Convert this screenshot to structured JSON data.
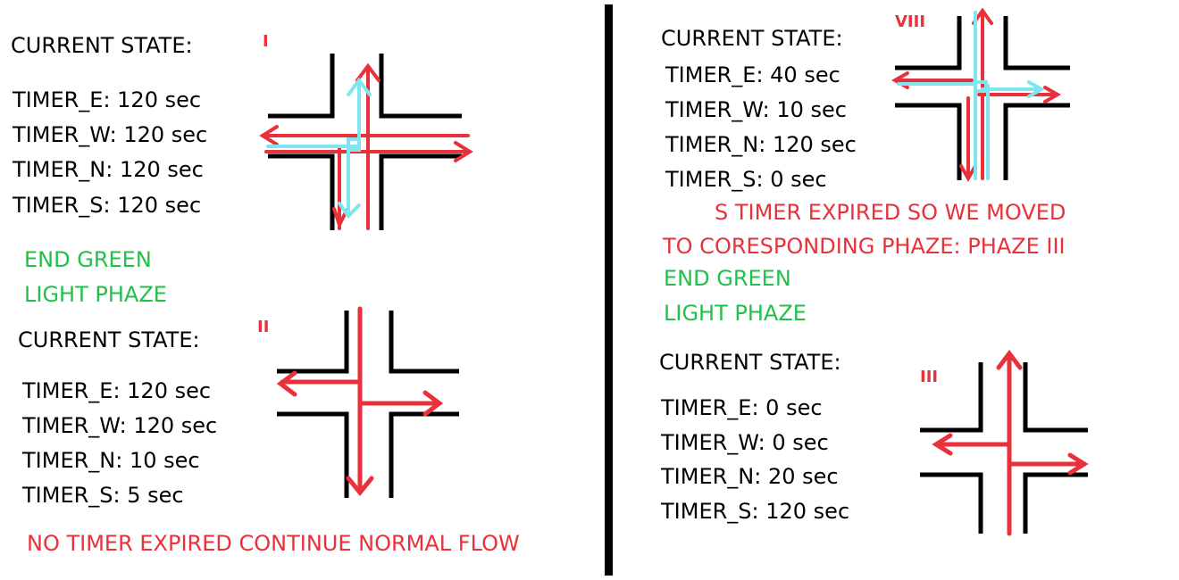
{
  "colors": {
    "text": "#000000",
    "status_green": "#21c04a",
    "status_red": "#e8313a",
    "arrow_red": "#e8313a",
    "arrow_cyan": "#7fe6ef",
    "road": "#000000"
  },
  "phases": [
    {
      "id": "phase-1",
      "heading": "CURRENT STATE:",
      "label": "I",
      "timers": [
        "TIMER_E: 120 sec",
        "TIMER_W: 120 sec",
        "TIMER_N: 120 sec",
        "TIMER_S: 120  sec"
      ],
      "status_lines": [
        "END GREEN",
        "LIGHT PHAZE"
      ]
    },
    {
      "id": "phase-2",
      "heading": "CURRENT STATE:",
      "label": "II",
      "timers": [
        "TIMER_E: 120 sec",
        "TIMER_W: 120 sec",
        "TIMER_N: 10 sec",
        "TIMER_S: 5 sec"
      ],
      "status_lines": [
        "NO TIMER EXPIRED CONTINUE NORMAL FLOW"
      ]
    },
    {
      "id": "phase-8",
      "heading": "CURRENT STATE:",
      "label": "VIII",
      "timers": [
        "TIMER_E: 40 sec",
        "TIMER_W: 10 sec",
        "TIMER_N: 120 sec",
        "TIMER_S: 0 sec"
      ],
      "status_lines": [
        "S TIMER   EXPIRED SO WE MOVED",
        "TO CORESPONDING PHAZE: PHAZE    III",
        "END GREEN",
        "LIGHT PHAZE"
      ]
    },
    {
      "id": "phase-3",
      "heading": "CURRENT STATE:",
      "label": "III",
      "timers": [
        "TIMER_E: 0 sec",
        "TIMER_W: 0 sec",
        "TIMER_N:  20  sec",
        "TIMER_S: 120 sec"
      ],
      "status_lines": []
    }
  ]
}
